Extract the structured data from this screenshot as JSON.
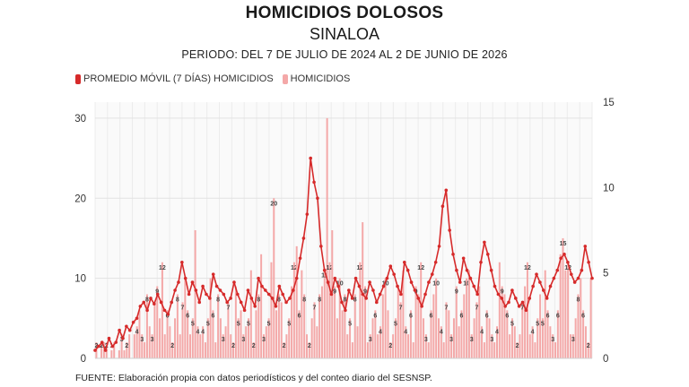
{
  "header": {
    "title": "HOMICIDIOS DOLOSOS",
    "subtitle": "SINALOA",
    "period": "PERIODO: DEL 7 DE JULIO DE 2024 AL 2 DE JUNIO DE 2026"
  },
  "legend": {
    "items": [
      {
        "label": "PROMEDIO MÓVIL (7 DÍAS) HOMICIDIOS",
        "color": "#d62a2a"
      },
      {
        "label": "HOMICIDIOS",
        "color": "#f4a8a8"
      }
    ]
  },
  "footer": "FUENTE: Elaboración propia con datos periodísticos y del conteo diario del SESNSP.",
  "chart_data": {
    "type": "bar",
    "x_start": "2024-07-07",
    "x_end": "2026-06-02",
    "left_axis": {
      "ticks": [
        0,
        10,
        20,
        30
      ],
      "range": [
        0,
        32
      ]
    },
    "right_axis": {
      "ticks": [
        0,
        5,
        10,
        15
      ],
      "range": [
        0,
        15
      ]
    },
    "grid": true,
    "legend_position": "top-left",
    "series": [
      {
        "name": "PROMEDIO MÓVIL (7 DÍAS) HOMICIDIOS",
        "color": "#d62a2a",
        "type": "line",
        "values": [
          1.0,
          1.5,
          2.0,
          1.0,
          2.5,
          1.5,
          2.0,
          3.5,
          2.5,
          4.0,
          3.5,
          4.5,
          5.0,
          6.5,
          7.0,
          6.0,
          7.5,
          6.8,
          8.0,
          7.0,
          6.0,
          5.5,
          7.0,
          8.5,
          9.5,
          12.0,
          10.0,
          8.0,
          9.5,
          8.5,
          7.0,
          9.0,
          8.0,
          7.5,
          10.5,
          9.0,
          8.5,
          8.0,
          7.0,
          7.5,
          9.5,
          8.0,
          7.0,
          6.0,
          8.5,
          7.5,
          6.5,
          10.0,
          9.0,
          8.5,
          8.0,
          7.5,
          6.5,
          9.0,
          8.0,
          7.0,
          7.5,
          8.5,
          10.0,
          12.5,
          15.0,
          18.0,
          25.0,
          22.0,
          20.0,
          14.0,
          11.0,
          9.5,
          8.0,
          10.0,
          9.0,
          7.0,
          6.0,
          8.5,
          7.5,
          10.0,
          9.0,
          8.0,
          7.5,
          9.5,
          8.5,
          7.0,
          8.0,
          9.0,
          10.0,
          11.5,
          10.5,
          9.0,
          8.0,
          12.0,
          11.0,
          9.5,
          8.5,
          7.5,
          6.5,
          8.0,
          9.5,
          10.5,
          12.0,
          14.0,
          19.0,
          21.0,
          16.0,
          13.0,
          11.0,
          9.5,
          12.5,
          11.0,
          10.0,
          9.0,
          8.0,
          12.0,
          14.5,
          13.0,
          11.0,
          9.0,
          8.0,
          7.5,
          6.5,
          7.0,
          8.5,
          7.5,
          6.5,
          7.0,
          6.0,
          7.5,
          9.0,
          10.5,
          9.5,
          8.5,
          7.5,
          9.0,
          10.0,
          11.0,
          12.5,
          13.0,
          12.0,
          10.5,
          9.5,
          10.0,
          11.0,
          14.0,
          12.0,
          10.0
        ]
      },
      {
        "name": "HOMICIDIOS",
        "color": "#f4a8a8",
        "type": "bar",
        "values": [
          2,
          0,
          2,
          2,
          2,
          0,
          1,
          2,
          0,
          1,
          3,
          1,
          2,
          3,
          0,
          3,
          4,
          6,
          3,
          2,
          8,
          4,
          3,
          7,
          9,
          5,
          12,
          3,
          6,
          4,
          2,
          5,
          8,
          3,
          7,
          10,
          6,
          3,
          5,
          16,
          4,
          3,
          4,
          2,
          5,
          10,
          6,
          2,
          8,
          5,
          3,
          4,
          7,
          3,
          2,
          9,
          5,
          6,
          3,
          4,
          5,
          11,
          2,
          6,
          8,
          13,
          3,
          4,
          5,
          12,
          20,
          6,
          8,
          7,
          2,
          3,
          5,
          9,
          12,
          14,
          6,
          11,
          8,
          3,
          2,
          5,
          7,
          4,
          8,
          9,
          11,
          30,
          12,
          16,
          9,
          5,
          10,
          6,
          8,
          3,
          5,
          2,
          8,
          4,
          12,
          17,
          9,
          2,
          3,
          5,
          6,
          3,
          4,
          8,
          10,
          6,
          2,
          3,
          5,
          9,
          7,
          11,
          4,
          3,
          6,
          2,
          9,
          8,
          12,
          5,
          3,
          2,
          6,
          8,
          10,
          5,
          4,
          2,
          7,
          6,
          3,
          5,
          9,
          4,
          6,
          8,
          10,
          11,
          3,
          5,
          7,
          9,
          4,
          2,
          6,
          5,
          3,
          2,
          4,
          12,
          9,
          8,
          6,
          3,
          5,
          4,
          2,
          3,
          7,
          9,
          12,
          3,
          4,
          2,
          5,
          8,
          5,
          11,
          6,
          4,
          3,
          2,
          6,
          13,
          15,
          11,
          12,
          3,
          3,
          5,
          8,
          10,
          6,
          4,
          2,
          10
        ]
      }
    ]
  }
}
